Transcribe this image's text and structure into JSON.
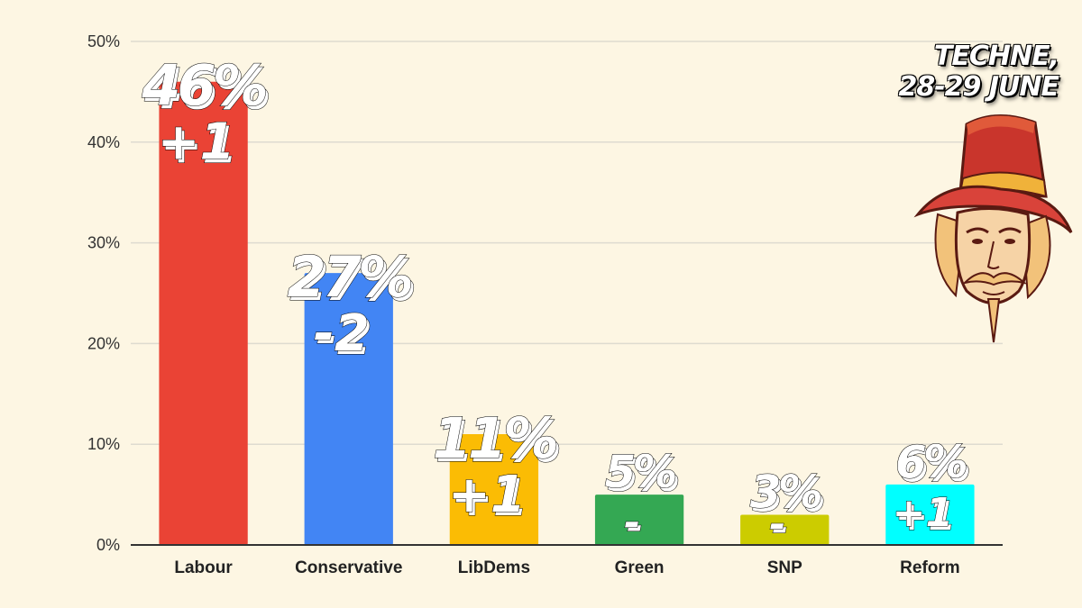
{
  "source_label": "TECHNE,\n28-29 JUNE",
  "chart_data": {
    "type": "bar",
    "title": "",
    "xlabel": "",
    "ylabel": "",
    "ylim": [
      0,
      50
    ],
    "yticks": [
      "0%",
      "10%",
      "20%",
      "30%",
      "40%",
      "50%"
    ],
    "grid": true,
    "categories": [
      "Labour",
      "Conservative",
      "LibDems",
      "Green",
      "SNP",
      "Reform"
    ],
    "values": [
      46,
      27,
      11,
      5,
      3,
      6
    ],
    "value_labels": [
      "46%",
      "27%",
      "11%",
      "5%",
      "3%",
      "6%"
    ],
    "changes": [
      "+1",
      "-2",
      "+1",
      "-",
      "-",
      "+1"
    ],
    "colors": [
      "#ea4335",
      "#4285f4",
      "#fbbc04",
      "#34a853",
      "#cccc00",
      "#00ffff"
    ]
  }
}
